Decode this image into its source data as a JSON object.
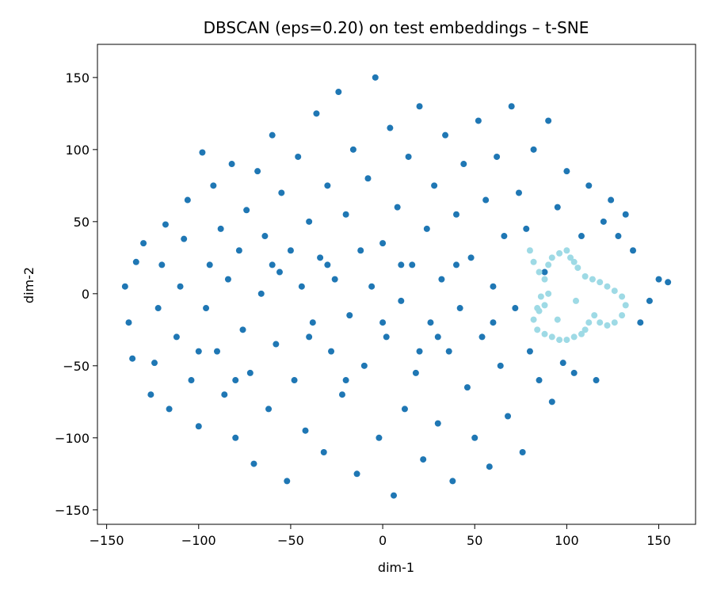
{
  "chart_data": {
    "type": "scatter",
    "title": "DBSCAN (eps=0.20) on test embeddings – t-SNE",
    "xlabel": "dim-1",
    "ylabel": "dim-2",
    "xlim": [
      -155,
      170
    ],
    "ylim": [
      -160,
      173
    ],
    "xticks": [
      -150,
      -100,
      -50,
      0,
      50,
      100,
      150
    ],
    "xtick_labels": [
      "−150",
      "−100",
      "−50",
      "0",
      "50",
      "100",
      "150"
    ],
    "yticks": [
      -150,
      -100,
      -50,
      0,
      50,
      100,
      150
    ],
    "ytick_labels": [
      "−150",
      "−100",
      "−50",
      "0",
      "50",
      "100",
      "150"
    ],
    "grid": false,
    "legend": "none",
    "series": [
      {
        "color": "#1f77b4",
        "points": [
          [
            -140,
            5
          ],
          [
            -138,
            -20
          ],
          [
            -136,
            -45
          ],
          [
            -134,
            22
          ],
          [
            -130,
            35
          ],
          [
            -126,
            -70
          ],
          [
            -124,
            -48
          ],
          [
            -122,
            -10
          ],
          [
            -120,
            20
          ],
          [
            -118,
            48
          ],
          [
            -116,
            -80
          ],
          [
            -112,
            -30
          ],
          [
            -110,
            5
          ],
          [
            -108,
            38
          ],
          [
            -106,
            65
          ],
          [
            -104,
            -60
          ],
          [
            -100,
            -92
          ],
          [
            -98,
            98
          ],
          [
            -96,
            -10
          ],
          [
            -94,
            20
          ],
          [
            -92,
            75
          ],
          [
            -90,
            -40
          ],
          [
            -88,
            45
          ],
          [
            -86,
            -70
          ],
          [
            -84,
            10
          ],
          [
            -82,
            90
          ],
          [
            -80,
            -100
          ],
          [
            -78,
            30
          ],
          [
            -76,
            -25
          ],
          [
            -74,
            58
          ],
          [
            -72,
            -55
          ],
          [
            -70,
            -118
          ],
          [
            -68,
            85
          ],
          [
            -66,
            0
          ],
          [
            -64,
            40
          ],
          [
            -62,
            -80
          ],
          [
            -60,
            110
          ],
          [
            -58,
            -35
          ],
          [
            -56,
            15
          ],
          [
            -55,
            70
          ],
          [
            -52,
            -130
          ],
          [
            -50,
            30
          ],
          [
            -48,
            -60
          ],
          [
            -46,
            95
          ],
          [
            -44,
            5
          ],
          [
            -42,
            -95
          ],
          [
            -40,
            50
          ],
          [
            -38,
            -20
          ],
          [
            -36,
            125
          ],
          [
            -34,
            25
          ],
          [
            -32,
            -110
          ],
          [
            -30,
            75
          ],
          [
            -28,
            -40
          ],
          [
            -26,
            10
          ],
          [
            -24,
            140
          ],
          [
            -22,
            -70
          ],
          [
            -20,
            55
          ],
          [
            -18,
            -15
          ],
          [
            -16,
            100
          ],
          [
            -14,
            -125
          ],
          [
            -12,
            30
          ],
          [
            -10,
            -50
          ],
          [
            -8,
            80
          ],
          [
            -6,
            5
          ],
          [
            -4,
            150
          ],
          [
            -2,
            -100
          ],
          [
            0,
            35
          ],
          [
            2,
            -30
          ],
          [
            4,
            115
          ],
          [
            6,
            -140
          ],
          [
            8,
            60
          ],
          [
            10,
            -5
          ],
          [
            12,
            -80
          ],
          [
            14,
            95
          ],
          [
            16,
            20
          ],
          [
            18,
            -55
          ],
          [
            20,
            130
          ],
          [
            22,
            -115
          ],
          [
            24,
            45
          ],
          [
            26,
            -20
          ],
          [
            28,
            75
          ],
          [
            30,
            -90
          ],
          [
            32,
            10
          ],
          [
            34,
            110
          ],
          [
            36,
            -40
          ],
          [
            38,
            -130
          ],
          [
            40,
            55
          ],
          [
            42,
            -10
          ],
          [
            44,
            90
          ],
          [
            46,
            -65
          ],
          [
            48,
            25
          ],
          [
            50,
            -100
          ],
          [
            52,
            120
          ],
          [
            54,
            -30
          ],
          [
            56,
            65
          ],
          [
            58,
            -120
          ],
          [
            60,
            5
          ],
          [
            62,
            95
          ],
          [
            64,
            -50
          ],
          [
            66,
            40
          ],
          [
            68,
            -85
          ],
          [
            70,
            130
          ],
          [
            72,
            -10
          ],
          [
            74,
            70
          ],
          [
            76,
            -110
          ],
          [
            78,
            45
          ],
          [
            80,
            -40
          ],
          [
            82,
            100
          ],
          [
            85,
            -60
          ],
          [
            88,
            15
          ],
          [
            90,
            120
          ],
          [
            92,
            -75
          ],
          [
            95,
            60
          ],
          [
            98,
            -48
          ],
          [
            100,
            85
          ],
          [
            104,
            -55
          ],
          [
            108,
            40
          ],
          [
            112,
            75
          ],
          [
            116,
            -60
          ],
          [
            120,
            50
          ],
          [
            124,
            65
          ],
          [
            128,
            40
          ],
          [
            132,
            55
          ],
          [
            136,
            30
          ],
          [
            140,
            -20
          ],
          [
            145,
            -5
          ],
          [
            150,
            10
          ],
          [
            155,
            8
          ],
          [
            -20,
            -60
          ],
          [
            -40,
            -30
          ],
          [
            10,
            20
          ],
          [
            30,
            -30
          ],
          [
            -60,
            20
          ],
          [
            -30,
            20
          ],
          [
            0,
            -20
          ],
          [
            20,
            -40
          ],
          [
            40,
            20
          ],
          [
            60,
            -20
          ],
          [
            -80,
            -60
          ],
          [
            -100,
            -40
          ]
        ]
      },
      {
        "color": "#9edae5",
        "points": [
          [
            80,
            30
          ],
          [
            82,
            22
          ],
          [
            85,
            15
          ],
          [
            88,
            10
          ],
          [
            90,
            0
          ],
          [
            88,
            -8
          ],
          [
            85,
            -12
          ],
          [
            82,
            -18
          ],
          [
            84,
            -25
          ],
          [
            88,
            -28
          ],
          [
            92,
            -30
          ],
          [
            96,
            -32
          ],
          [
            100,
            -32
          ],
          [
            104,
            -30
          ],
          [
            108,
            -28
          ],
          [
            110,
            -25
          ],
          [
            112,
            -20
          ],
          [
            115,
            -15
          ],
          [
            118,
            -20
          ],
          [
            122,
            -22
          ],
          [
            126,
            -20
          ],
          [
            130,
            -15
          ],
          [
            132,
            -8
          ],
          [
            130,
            -2
          ],
          [
            126,
            2
          ],
          [
            122,
            5
          ],
          [
            118,
            8
          ],
          [
            114,
            10
          ],
          [
            110,
            12
          ],
          [
            106,
            18
          ],
          [
            104,
            22
          ],
          [
            102,
            25
          ],
          [
            100,
            30
          ],
          [
            96,
            28
          ],
          [
            92,
            25
          ],
          [
            90,
            20
          ],
          [
            86,
            -2
          ],
          [
            84,
            -10
          ],
          [
            95,
            -18
          ],
          [
            105,
            -5
          ]
        ]
      }
    ]
  }
}
